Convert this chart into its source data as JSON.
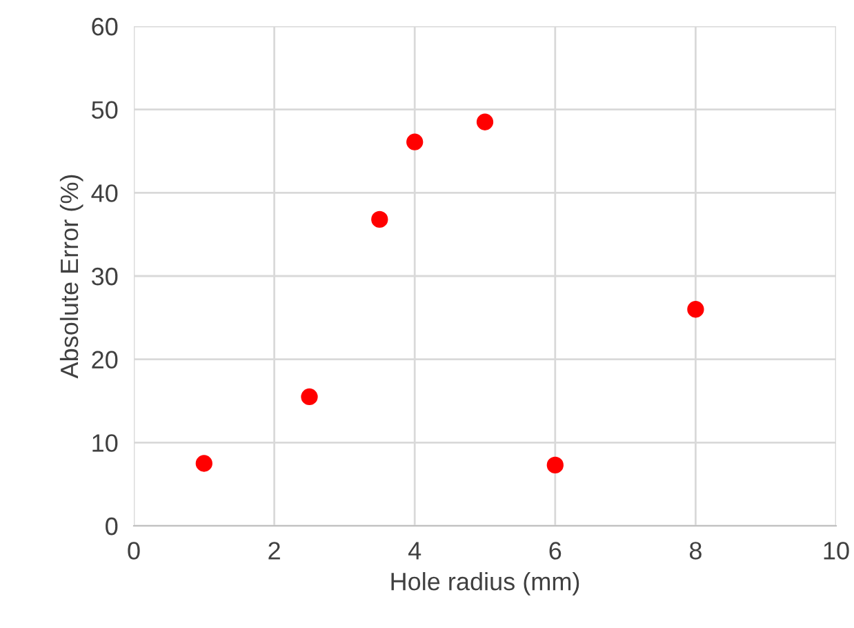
{
  "chart_data": {
    "type": "scatter",
    "xlabel": "Hole radius (mm)",
    "ylabel": "Absolute Error (%)",
    "x": [
      1,
      2.5,
      3.5,
      4,
      5,
      6,
      8
    ],
    "series": [
      {
        "color": "#ff0000",
        "values": [
          7.5,
          15.5,
          36.8,
          46.1,
          48.5,
          7.3,
          26
        ]
      }
    ],
    "xlim": [
      0,
      10
    ],
    "xticks": [
      0,
      2,
      4,
      6,
      8,
      10
    ],
    "ylim": [
      0,
      60
    ],
    "yticks": [
      0,
      10,
      20,
      30,
      40,
      50,
      60
    ],
    "grid": true,
    "marker": "circle",
    "legend": false
  }
}
